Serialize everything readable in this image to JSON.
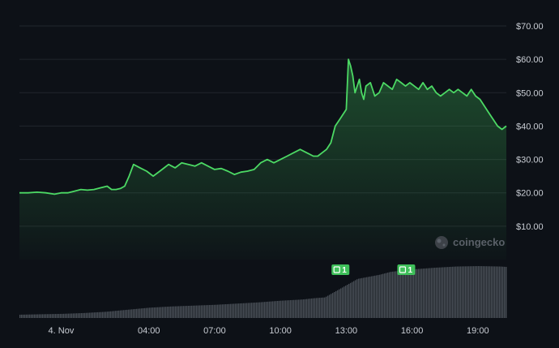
{
  "chart_data": {
    "type": "area",
    "line_color": "#4cd964",
    "volume_color": "#4a5058",
    "grid": true,
    "y_axis_position": "right",
    "ylim": [
      0,
      70
    ],
    "yticks": [
      {
        "value": 70,
        "label": "$70.00"
      },
      {
        "value": 60,
        "label": "$60.00"
      },
      {
        "value": 50,
        "label": "$50.00"
      },
      {
        "value": 40,
        "label": "$40.00"
      },
      {
        "value": 30,
        "label": "$30.00"
      },
      {
        "value": 20,
        "label": "$20.00"
      },
      {
        "value": 10,
        "label": "$10.00"
      }
    ],
    "xlim": [
      -1.9,
      20.3
    ],
    "xticks": [
      {
        "value": 0,
        "label": "4. Nov"
      },
      {
        "value": 4,
        "label": "04:00"
      },
      {
        "value": 7,
        "label": "07:00"
      },
      {
        "value": 10,
        "label": "10:00"
      },
      {
        "value": 13,
        "label": "13:00"
      },
      {
        "value": 16,
        "label": "16:00"
      },
      {
        "value": 19,
        "label": "19:00"
      }
    ],
    "price_series": {
      "x": [
        -1.9,
        -1.5,
        -1.1,
        -0.7,
        -0.3,
        0,
        0.3,
        0.6,
        0.9,
        1.2,
        1.5,
        1.8,
        2.1,
        2.3,
        2.5,
        2.7,
        2.9,
        3.1,
        3.3,
        3.6,
        3.9,
        4.2,
        4.5,
        4.7,
        4.9,
        5.2,
        5.5,
        5.8,
        6.1,
        6.4,
        6.7,
        7,
        7.3,
        7.6,
        7.9,
        8.2,
        8.5,
        8.8,
        9.1,
        9.4,
        9.7,
        10,
        10.3,
        10.6,
        10.9,
        11.2,
        11.5,
        11.7,
        11.9,
        12.1,
        12.3,
        12.5,
        12.7,
        12.8,
        12.9,
        13,
        13.1,
        13.2,
        13.3,
        13.4,
        13.5,
        13.6,
        13.7,
        13.8,
        13.9,
        14.1,
        14.3,
        14.5,
        14.7,
        14.9,
        15.1,
        15.3,
        15.5,
        15.7,
        15.9,
        16.1,
        16.3,
        16.5,
        16.7,
        16.9,
        17.1,
        17.3,
        17.5,
        17.7,
        17.9,
        18.1,
        18.3,
        18.5,
        18.7,
        18.9,
        19.1,
        19.3,
        19.5,
        19.7,
        19.9,
        20.1,
        20.3
      ],
      "y": [
        20,
        20,
        20.2,
        20,
        19.6,
        20,
        20,
        20.5,
        21,
        20.8,
        21,
        21.5,
        22,
        21,
        21,
        21.3,
        22,
        25,
        28.5,
        27.5,
        26.5,
        25,
        26.5,
        27.5,
        28.5,
        27.5,
        29,
        28.5,
        28,
        29,
        28,
        27,
        27.3,
        26.5,
        25.5,
        26.2,
        26.5,
        27,
        29,
        30,
        29,
        30,
        31,
        32,
        33,
        32,
        31,
        31,
        32,
        33,
        35,
        40,
        42,
        43,
        44,
        45,
        60,
        58,
        55,
        50,
        52,
        54,
        50,
        48,
        52,
        53,
        49,
        50,
        53,
        52,
        51,
        54,
        53,
        52,
        53,
        52,
        51,
        53,
        51,
        52,
        50,
        49,
        50,
        51,
        50,
        51,
        50,
        49,
        51,
        49,
        48,
        46,
        44,
        42,
        40,
        39,
        40
      ]
    },
    "volume_series": {
      "x": [
        -1.9,
        -1,
        0,
        1,
        2,
        3,
        4,
        5,
        6,
        7,
        8,
        9,
        10,
        11,
        11.5,
        12,
        12.5,
        13,
        13.5,
        14,
        14.5,
        15,
        15.5,
        16,
        16.5,
        17,
        18,
        19,
        20,
        20.3
      ],
      "y": [
        0.08,
        0.09,
        0.1,
        0.12,
        0.15,
        0.2,
        0.25,
        0.28,
        0.3,
        0.32,
        0.35,
        0.38,
        0.42,
        0.45,
        0.48,
        0.5,
        0.65,
        0.8,
        0.95,
        1.0,
        1.05,
        1.12,
        1.15,
        1.18,
        1.2,
        1.22,
        1.25,
        1.26,
        1.25,
        1.24
      ]
    },
    "markers": [
      {
        "x": 12.7,
        "label": "1"
      },
      {
        "x": 15.7,
        "label": "1"
      }
    ],
    "watermark": "coingecko"
  }
}
